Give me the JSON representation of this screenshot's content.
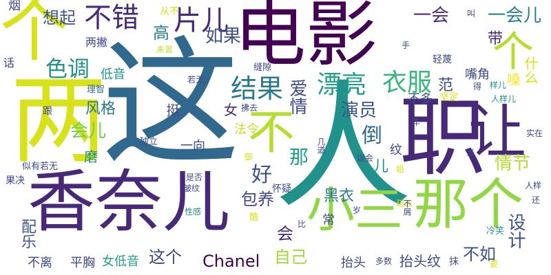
{
  "palette": {
    "dark_purple": "#440154",
    "indigo": "#3b528b",
    "blue": "#31688e",
    "teal": "#21918c",
    "green": "#35b779",
    "lime": "#90d743",
    "yellow": "#d8e219"
  },
  "words": [
    {
      "text": "电影",
      "color": "#440154"
    },
    {
      "text": "这",
      "color": "#31688e"
    },
    {
      "text": "人",
      "color": "#21918c"
    },
    {
      "text": "职",
      "color": "#482878"
    },
    {
      "text": "香奈儿",
      "color": "#482878"
    },
    {
      "text": "个",
      "color": "#d8e219"
    },
    {
      "text": "两",
      "color": "#d8e219"
    },
    {
      "text": "让",
      "color": "#482878"
    },
    {
      "text": "那个",
      "color": "#90d743"
    },
    {
      "text": "小三",
      "color": "#90d743"
    },
    {
      "text": "不",
      "color": "#b5de2b"
    },
    {
      "text": "个",
      "color": "#b5de2b"
    },
    {
      "text": "不错",
      "color": "#482878"
    },
    {
      "text": "片儿",
      "color": "#482878"
    },
    {
      "text": "想起",
      "color": "#3b528b"
    },
    {
      "text": "一会",
      "color": "#482878"
    },
    {
      "text": "一会儿",
      "color": "#26828e"
    },
    {
      "text": "色调",
      "color": "#21918c"
    },
    {
      "text": "结果",
      "color": "#2a788e"
    },
    {
      "text": "漂亮",
      "color": "#1f9e89"
    },
    {
      "text": "衣服",
      "color": "#35b779"
    },
    {
      "text": "倒",
      "color": "#31688e"
    },
    {
      "text": "好",
      "color": "#3b528b"
    },
    {
      "text": "那",
      "color": "#1f9e89"
    },
    {
      "text": "情节",
      "color": "#b5de2b"
    },
    {
      "text": "设计",
      "color": "#3b528b"
    },
    {
      "text": "如果",
      "color": "#3b528b"
    },
    {
      "text": "高",
      "color": "#26828e"
    },
    {
      "text": "演员",
      "color": "#3b528b"
    },
    {
      "text": "爱情",
      "color": "#3e4989"
    },
    {
      "text": "包养",
      "color": "#3e4989"
    },
    {
      "text": "Chanel",
      "color": "#440154"
    },
    {
      "text": "自己",
      "color": "#a0da39"
    },
    {
      "text": "这个",
      "color": "#3e4989"
    },
    {
      "text": "不如",
      "color": "#3b528b"
    },
    {
      "text": "会",
      "color": "#482878"
    },
    {
      "text": "会儿",
      "color": "#6ece58"
    },
    {
      "text": "风格",
      "color": "#2a788e"
    },
    {
      "text": "黑衣",
      "color": "#2a788e"
    },
    {
      "text": "抬头纹",
      "color": "#3e4989"
    },
    {
      "text": "配乐",
      "color": "#3b528b"
    },
    {
      "text": "女低音",
      "color": "#1f9e89"
    },
    {
      "text": "平胸",
      "color": "#3e4989"
    },
    {
      "text": "不离",
      "color": "#3e4989"
    },
    {
      "text": "抬头",
      "color": "#3e4989"
    },
    {
      "text": "女",
      "color": "#482878"
    },
    {
      "text": "低音",
      "color": "#21918c"
    },
    {
      "text": "挺",
      "color": "#3e4989"
    },
    {
      "text": "一向",
      "color": "#3e4989"
    },
    {
      "text": "什么",
      "color": "#d8e219"
    },
    {
      "text": "嘴角",
      "color": "#3e4989"
    },
    {
      "text": "两撇",
      "color": "#3e4989"
    },
    {
      "text": "不多",
      "color": "#3b528b"
    },
    {
      "text": "范",
      "color": "#3e4989"
    },
    {
      "text": "纹",
      "color": "#3e4989"
    },
    {
      "text": "儿",
      "color": "#21918c"
    },
    {
      "text": "磨",
      "color": "#21918c"
    },
    {
      "text": "常",
      "color": "#3e4989"
    },
    {
      "text": "带",
      "color": "#482878"
    },
    {
      "text": "嗓",
      "color": "#fde725"
    },
    {
      "text": "法令",
      "color": "#c2df23"
    },
    {
      "text": "坚定",
      "color": "#d8e219"
    },
    {
      "text": "怀疑",
      "color": "#3e4989"
    },
    {
      "text": "缝隙",
      "color": "#3e4989"
    },
    {
      "text": "轻蔑",
      "color": "#3e4989"
    },
    {
      "text": "若无",
      "color": "#3e4989"
    },
    {
      "text": "从不",
      "color": "#d8e219"
    },
    {
      "text": "未曾",
      "color": "#c2df23"
    },
    {
      "text": "烟",
      "color": "#3e4989"
    },
    {
      "text": "话",
      "color": "#3e4989"
    },
    {
      "text": "理智",
      "color": "#31688e"
    },
    {
      "text": "跟",
      "color": "#3e4989"
    },
    {
      "text": "独立",
      "color": "#3e4989"
    },
    {
      "text": "似有若无",
      "color": "#3e4989"
    },
    {
      "text": "果决",
      "color": "#3e4989"
    },
    {
      "text": "皱纹",
      "color": "#3e4989"
    },
    {
      "text": "性感",
      "color": "#21918c"
    },
    {
      "text": "酷",
      "color": "#d8e219"
    },
    {
      "text": "是否",
      "color": "#3e4989"
    },
    {
      "text": "多数",
      "color": "#3e4989"
    },
    {
      "text": "比",
      "color": "#3e4989"
    },
    {
      "text": "误会",
      "color": "#3e4989"
    },
    {
      "text": "实在",
      "color": "#3e4989"
    },
    {
      "text": "人样",
      "color": "#3e4989"
    },
    {
      "text": "还",
      "color": "#3e4989"
    },
    {
      "text": "冷笑",
      "color": "#21918c"
    },
    {
      "text": "疏忽",
      "color": "#d8e219"
    },
    {
      "text": "样儿",
      "color": "#21918c"
    },
    {
      "text": "人样儿",
      "color": "#21918c"
    },
    {
      "text": "得",
      "color": "#3e4989"
    },
    {
      "text": "手",
      "color": "#3e4989"
    },
    {
      "text": "拂去",
      "color": "#3e4989"
    },
    {
      "text": "几道",
      "color": "#3e4989"
    },
    {
      "text": "不屑",
      "color": "#3e4989"
    },
    {
      "text": "御",
      "color": "#d8e219"
    },
    {
      "text": "姐",
      "color": "#d8e219"
    },
    {
      "text": "岁",
      "color": "#3e4989"
    },
    {
      "text": "叫",
      "color": "#3e4989"
    },
    {
      "text": "抹",
      "color": "#3e4989"
    },
    {
      "text": "要",
      "color": "#d8e219"
    },
    {
      "text": "当",
      "color": "#3e4989"
    },
    {
      "text": "年",
      "color": "#3e4989"
    }
  ]
}
